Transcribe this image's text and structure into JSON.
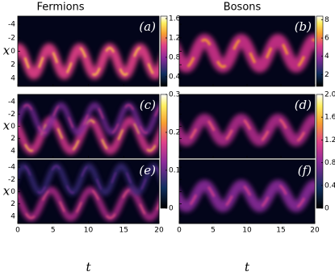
{
  "titles": [
    "Fermions",
    "Bosons"
  ],
  "panels": [
    {
      "label": "(a)"
    },
    {
      "label": "(b)"
    },
    {
      "label": "(c)"
    },
    {
      "label": "(d)"
    },
    {
      "label": "(e)"
    },
    {
      "label": "(f)"
    }
  ],
  "x_axis": {
    "label": "x",
    "lim": [
      -5.2,
      5.2
    ],
    "ticks": [
      -4,
      -2,
      0,
      2,
      4
    ]
  },
  "t_axis": {
    "label": "t",
    "lim": [
      0,
      20
    ],
    "ticks": [
      0,
      5,
      10,
      15,
      20
    ]
  },
  "colorbars": [
    {
      "lim": [
        0.2,
        1.65
      ],
      "ticks": [
        0.4,
        0.8,
        1.2,
        1.6
      ]
    },
    {
      "lim": [
        0.7,
        8.4
      ],
      "ticks": [
        2,
        4,
        6,
        8
      ]
    },
    {
      "lim": [
        0,
        0.3
      ],
      "ticks": [
        0,
        0.1,
        0.2,
        0.3
      ]
    },
    {
      "lim": [
        0,
        2
      ],
      "ticks": [
        0,
        0.4,
        0.8,
        1.2,
        1.6,
        {
          "value": 2,
          "label": "2.0"
        }
      ]
    }
  ]
}
